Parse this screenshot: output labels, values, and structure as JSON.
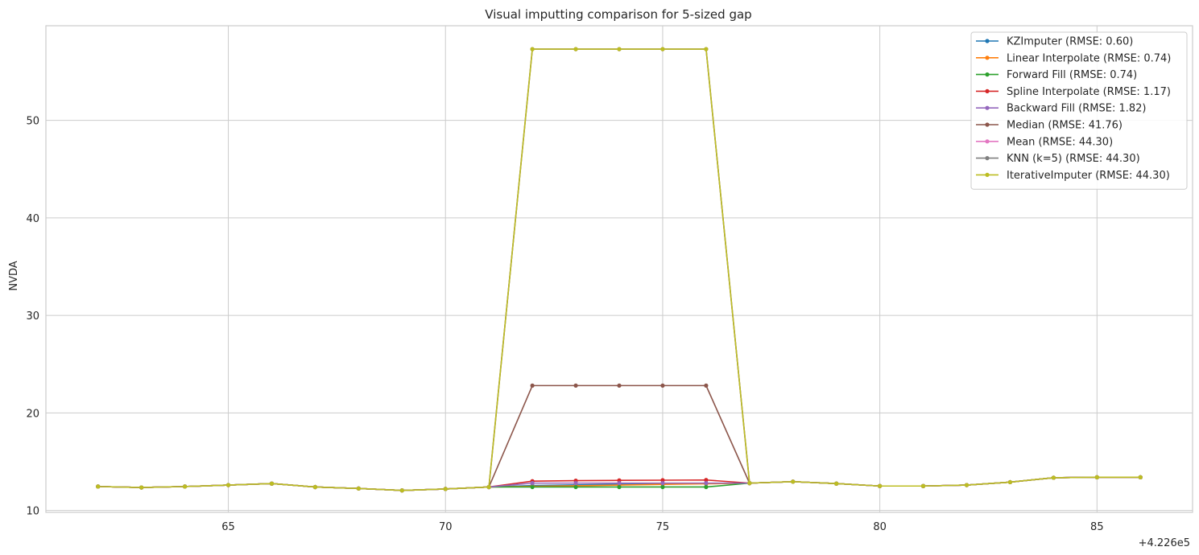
{
  "chart_data": {
    "type": "line",
    "title": "Visual imputting comparison for 5-sized gap",
    "xlabel": "",
    "ylabel": "NVDA",
    "x_offset_label": "+4.226e5",
    "xlim": [
      60.8,
      87.2
    ],
    "ylim": [
      9.8,
      59.7
    ],
    "x_ticks": [
      65,
      70,
      75,
      80,
      85
    ],
    "y_ticks": [
      10,
      20,
      30,
      40,
      50
    ],
    "grid": true,
    "legend_position": "top-right",
    "x": [
      62,
      63,
      64,
      65,
      66,
      67,
      68,
      69,
      70,
      71,
      72,
      73,
      74,
      75,
      76,
      77,
      78,
      79,
      80,
      81,
      82,
      83,
      84,
      85,
      86
    ],
    "series": [
      {
        "name": "KZImputer (RMSE: 0.60)",
        "color": "#1f77b4",
        "values": [
          12.45,
          12.35,
          12.45,
          12.6,
          12.75,
          12.4,
          12.25,
          12.05,
          12.2,
          12.4,
          12.55,
          12.62,
          12.68,
          12.72,
          12.75,
          12.8,
          12.95,
          12.75,
          12.5,
          12.5,
          12.6,
          12.9,
          13.35,
          13.4,
          13.4
        ]
      },
      {
        "name": "Linear Interpolate (RMSE: 0.74)",
        "color": "#ff7f0e",
        "values": [
          12.45,
          12.35,
          12.45,
          12.6,
          12.75,
          12.4,
          12.25,
          12.05,
          12.2,
          12.4,
          12.47,
          12.53,
          12.6,
          12.67,
          12.73,
          12.8,
          12.95,
          12.75,
          12.5,
          12.5,
          12.6,
          12.9,
          13.35,
          13.4,
          13.4
        ]
      },
      {
        "name": "Forward Fill (RMSE: 0.74)",
        "color": "#2ca02c",
        "values": [
          12.45,
          12.35,
          12.45,
          12.6,
          12.75,
          12.4,
          12.25,
          12.05,
          12.2,
          12.4,
          12.4,
          12.4,
          12.4,
          12.4,
          12.4,
          12.8,
          12.95,
          12.75,
          12.5,
          12.5,
          12.6,
          12.9,
          13.35,
          13.4,
          13.4
        ]
      },
      {
        "name": "Spline Interpolate (RMSE: 1.17)",
        "color": "#d62728",
        "values": [
          12.45,
          12.35,
          12.45,
          12.6,
          12.75,
          12.4,
          12.25,
          12.05,
          12.2,
          12.4,
          13.0,
          13.05,
          13.08,
          13.1,
          13.12,
          12.8,
          12.95,
          12.75,
          12.5,
          12.5,
          12.6,
          12.9,
          13.35,
          13.4,
          13.4
        ]
      },
      {
        "name": "Backward Fill (RMSE: 1.82)",
        "color": "#9467bd",
        "values": [
          12.45,
          12.35,
          12.45,
          12.6,
          12.75,
          12.4,
          12.25,
          12.05,
          12.2,
          12.4,
          12.8,
          12.8,
          12.8,
          12.8,
          12.8,
          12.8,
          12.95,
          12.75,
          12.5,
          12.5,
          12.6,
          12.9,
          13.35,
          13.4,
          13.4
        ]
      },
      {
        "name": "Median (RMSE: 41.76)",
        "color": "#8c564b",
        "values": [
          12.45,
          12.35,
          12.45,
          12.6,
          12.75,
          12.4,
          12.25,
          12.05,
          12.2,
          12.4,
          22.8,
          22.8,
          22.8,
          22.8,
          22.8,
          12.8,
          12.95,
          12.75,
          12.5,
          12.5,
          12.6,
          12.9,
          13.35,
          13.4,
          13.4
        ]
      },
      {
        "name": "Mean (RMSE: 44.30)",
        "color": "#e377c2",
        "values": [
          12.45,
          12.35,
          12.45,
          12.6,
          12.75,
          12.4,
          12.25,
          12.05,
          12.2,
          12.4,
          57.3,
          57.3,
          57.3,
          57.3,
          57.3,
          12.8,
          12.95,
          12.75,
          12.5,
          12.5,
          12.6,
          12.9,
          13.35,
          13.4,
          13.4
        ]
      },
      {
        "name": "KNN (k=5) (RMSE: 44.30)",
        "color": "#7f7f7f",
        "values": [
          12.45,
          12.35,
          12.45,
          12.6,
          12.75,
          12.4,
          12.25,
          12.05,
          12.2,
          12.4,
          57.3,
          57.3,
          57.3,
          57.3,
          57.3,
          12.8,
          12.95,
          12.75,
          12.5,
          12.5,
          12.6,
          12.9,
          13.35,
          13.4,
          13.4
        ]
      },
      {
        "name": "IterativeImputer (RMSE: 44.30)",
        "color": "#bcbd22",
        "values": [
          12.45,
          12.35,
          12.45,
          12.6,
          12.75,
          12.4,
          12.25,
          12.05,
          12.2,
          12.4,
          57.3,
          57.3,
          57.3,
          57.3,
          57.3,
          12.8,
          12.95,
          12.75,
          12.5,
          12.5,
          12.6,
          12.9,
          13.35,
          13.4,
          13.4
        ]
      }
    ]
  }
}
